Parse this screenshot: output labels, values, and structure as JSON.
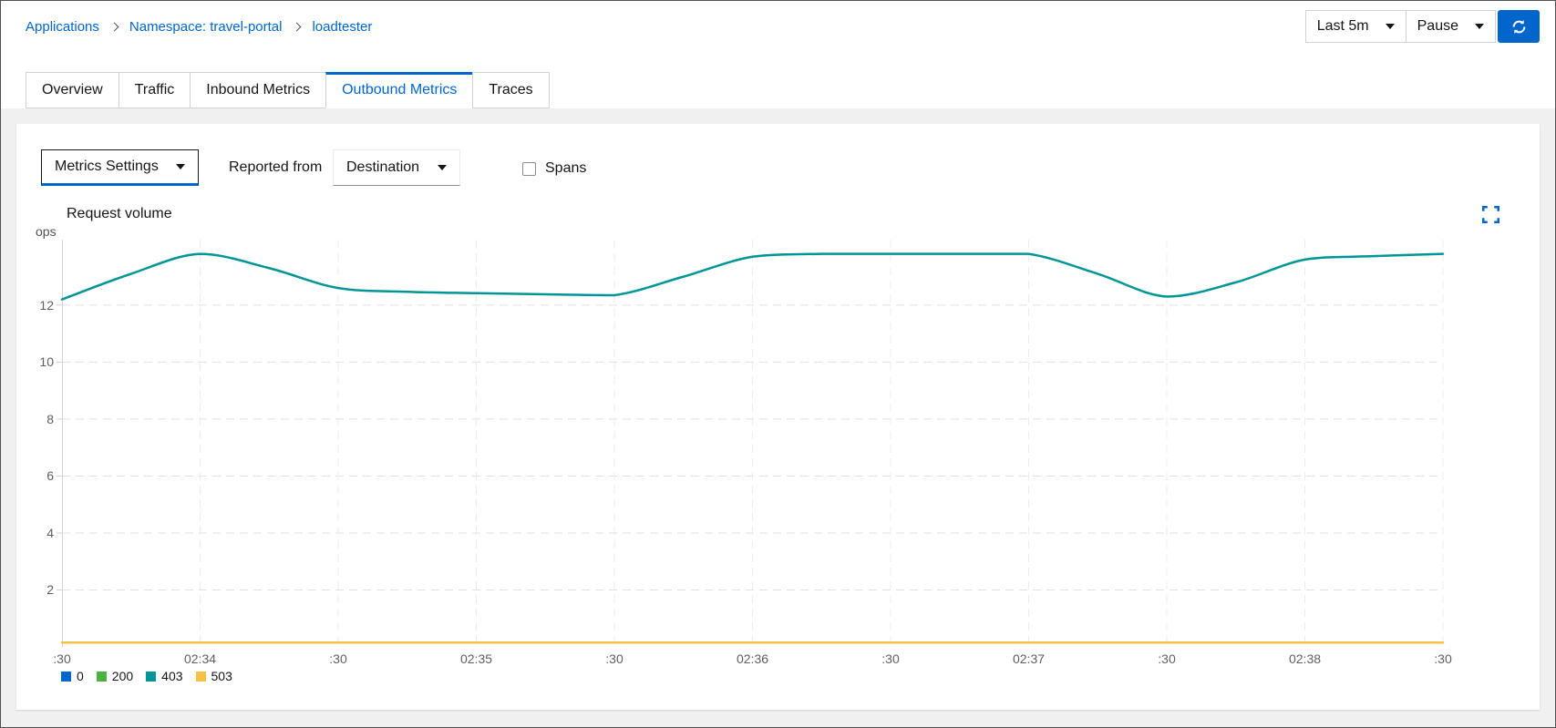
{
  "colors": {
    "accent": "#0066cc"
  },
  "breadcrumb": {
    "items": [
      {
        "label": "Applications"
      },
      {
        "label": "Namespace: travel-portal"
      },
      {
        "label": "loadtester"
      }
    ]
  },
  "topbar": {
    "duration_label": "Last 5m",
    "refresh_mode_label": "Pause"
  },
  "tabs": [
    {
      "label": "Overview",
      "active": false
    },
    {
      "label": "Traffic",
      "active": false
    },
    {
      "label": "Inbound Metrics",
      "active": false
    },
    {
      "label": "Outbound Metrics",
      "active": true
    },
    {
      "label": "Traces",
      "active": false
    }
  ],
  "toolbar": {
    "metrics_settings_label": "Metrics Settings",
    "reported_from_label": "Reported from",
    "reported_from_value": "Destination",
    "spans_label": "Spans",
    "spans_checked": false
  },
  "chart_data": {
    "type": "line",
    "title": "Request volume",
    "xlabel": "",
    "ylabel": "ops",
    "grid": true,
    "legend_position": "bottom",
    "x": [
      0,
      15,
      30,
      45,
      60,
      75,
      90,
      105,
      120,
      135,
      150,
      165,
      180,
      195,
      210,
      225,
      240,
      255,
      270,
      285,
      300
    ],
    "xticks": [
      0,
      30,
      60,
      90,
      120,
      150,
      180,
      210,
      240,
      270,
      300
    ],
    "xticklabels": [
      ":30",
      "02:34",
      ":30",
      "02:35",
      ":30",
      "02:36",
      ":30",
      "02:37",
      ":30",
      "02:38",
      ":30"
    ],
    "yticks": [
      2,
      4,
      6,
      8,
      10,
      12
    ],
    "ylim": [
      0,
      14.3
    ],
    "series": [
      {
        "name": "0",
        "color": "#0066cc",
        "values": []
      },
      {
        "name": "200",
        "color": "#4cb140",
        "values": []
      },
      {
        "name": "403",
        "color": "#009596",
        "values": [
          12.2,
          13.1,
          13.8,
          13.3,
          12.6,
          12.47,
          12.42,
          12.38,
          12.35,
          13.0,
          13.7,
          13.8,
          13.8,
          13.8,
          13.8,
          13.1,
          12.3,
          12.8,
          13.6,
          13.72,
          13.8
        ]
      },
      {
        "name": "503",
        "color": "#f4c145",
        "values": [
          0.15,
          0.15,
          0.15,
          0.15,
          0.15,
          0.15,
          0.15,
          0.15,
          0.15,
          0.15,
          0.15,
          0.15,
          0.15,
          0.15,
          0.15,
          0.15,
          0.15,
          0.15,
          0.15,
          0.15,
          0.15
        ]
      }
    ]
  }
}
